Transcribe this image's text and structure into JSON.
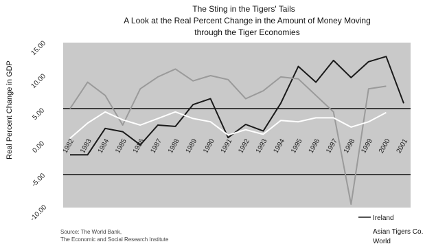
{
  "chart_data": {
    "type": "line",
    "title": "The Sting in the Tigers' Tails",
    "subtitle_lines": [
      "A Look at the Real Percent Change in the Amount of Money Moving",
      "through the Tiger Economies"
    ],
    "ylabel": "Real Percent Change in GDP",
    "x": [
      "1982",
      "1983",
      "1984",
      "1985",
      "1986",
      "1987",
      "1988",
      "1989",
      "1990",
      "1991",
      "1992",
      "1993",
      "1994",
      "1995",
      "1996",
      "1997",
      "1998",
      "1999",
      "2000",
      "2001"
    ],
    "ytick_labels": [
      "15.00",
      "10.00",
      "5.00",
      "0.00",
      "-5.00",
      "-10.00"
    ],
    "ylim": [
      -10,
      15
    ],
    "series": [
      {
        "name": "Ireland",
        "color": "#1a1a1a",
        "values": [
          -2.0,
          -2.0,
          2.0,
          1.5,
          -0.5,
          2.5,
          2.3,
          5.6,
          6.5,
          0.6,
          2.6,
          1.6,
          5.8,
          11.4,
          9.0,
          12.3,
          9.7,
          12.1,
          12.9,
          5.8
        ]
      },
      {
        "name": "Asian Tigers Co.",
        "color": "#9a9a9a",
        "values": [
          5.0,
          9.0,
          7.0,
          2.5,
          8.0,
          9.8,
          11.0,
          9.2,
          10.0,
          9.4,
          6.5,
          7.7,
          9.8,
          9.5,
          7.0,
          4.5,
          -9.5,
          8.0,
          8.4,
          null
        ]
      },
      {
        "name": "World",
        "color": "#ffffff",
        "values": [
          0.5,
          2.8,
          4.5,
          3.3,
          2.5,
          3.5,
          4.5,
          3.5,
          3.0,
          1.0,
          1.8,
          1.1,
          3.2,
          3.0,
          3.6,
          3.6,
          2.2,
          3.0,
          4.4,
          null
        ]
      }
    ],
    "reference_lines": [
      5,
      -5
    ],
    "legend_position": "bottom-right",
    "source_lines": [
      "Source: The World Bank,",
      "The Economic and Social Research Institute"
    ],
    "colors": {
      "plot_background": "#c9c9c9",
      "reference_line": "#111111"
    }
  }
}
